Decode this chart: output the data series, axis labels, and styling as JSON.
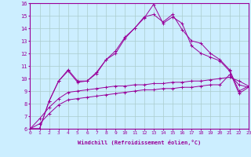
{
  "xlabel": "Windchill (Refroidissement éolien,°C)",
  "background_color": "#cceeff",
  "line_color": "#990099",
  "grid_color": "#aacccc",
  "x_data": [
    0,
    1,
    2,
    3,
    4,
    5,
    6,
    7,
    8,
    9,
    10,
    11,
    12,
    13,
    14,
    15,
    16,
    17,
    18,
    19,
    20,
    21,
    22,
    23
  ],
  "line1_y": [
    6.0,
    6.0,
    8.2,
    9.8,
    10.7,
    9.8,
    9.8,
    10.5,
    11.5,
    12.2,
    13.3,
    14.0,
    14.9,
    15.1,
    14.5,
    15.1,
    13.9,
    13.0,
    12.8,
    12.0,
    11.5,
    10.7,
    9.0,
    9.4
  ],
  "line2_y": [
    6.0,
    6.0,
    8.2,
    9.8,
    10.6,
    9.7,
    9.8,
    10.4,
    11.5,
    12.0,
    13.2,
    14.0,
    14.8,
    15.9,
    14.4,
    14.9,
    14.4,
    12.6,
    12.0,
    11.7,
    11.4,
    10.6,
    8.8,
    9.3
  ],
  "line3_y": [
    6.0,
    6.8,
    7.7,
    8.4,
    8.9,
    9.0,
    9.1,
    9.2,
    9.3,
    9.4,
    9.4,
    9.5,
    9.5,
    9.6,
    9.6,
    9.7,
    9.7,
    9.8,
    9.8,
    9.9,
    10.0,
    10.1,
    9.8,
    9.4
  ],
  "line4_y": [
    6.0,
    6.4,
    7.2,
    7.9,
    8.3,
    8.4,
    8.5,
    8.6,
    8.7,
    8.8,
    8.9,
    9.0,
    9.1,
    9.1,
    9.2,
    9.2,
    9.3,
    9.3,
    9.4,
    9.5,
    9.5,
    10.3,
    9.5,
    9.3
  ],
  "ylim": [
    6,
    16
  ],
  "xlim": [
    0,
    23
  ],
  "yticks": [
    6,
    7,
    8,
    9,
    10,
    11,
    12,
    13,
    14,
    15,
    16
  ],
  "xticks": [
    0,
    1,
    2,
    3,
    4,
    5,
    6,
    7,
    8,
    9,
    10,
    11,
    12,
    13,
    14,
    15,
    16,
    17,
    18,
    19,
    20,
    21,
    22,
    23
  ]
}
